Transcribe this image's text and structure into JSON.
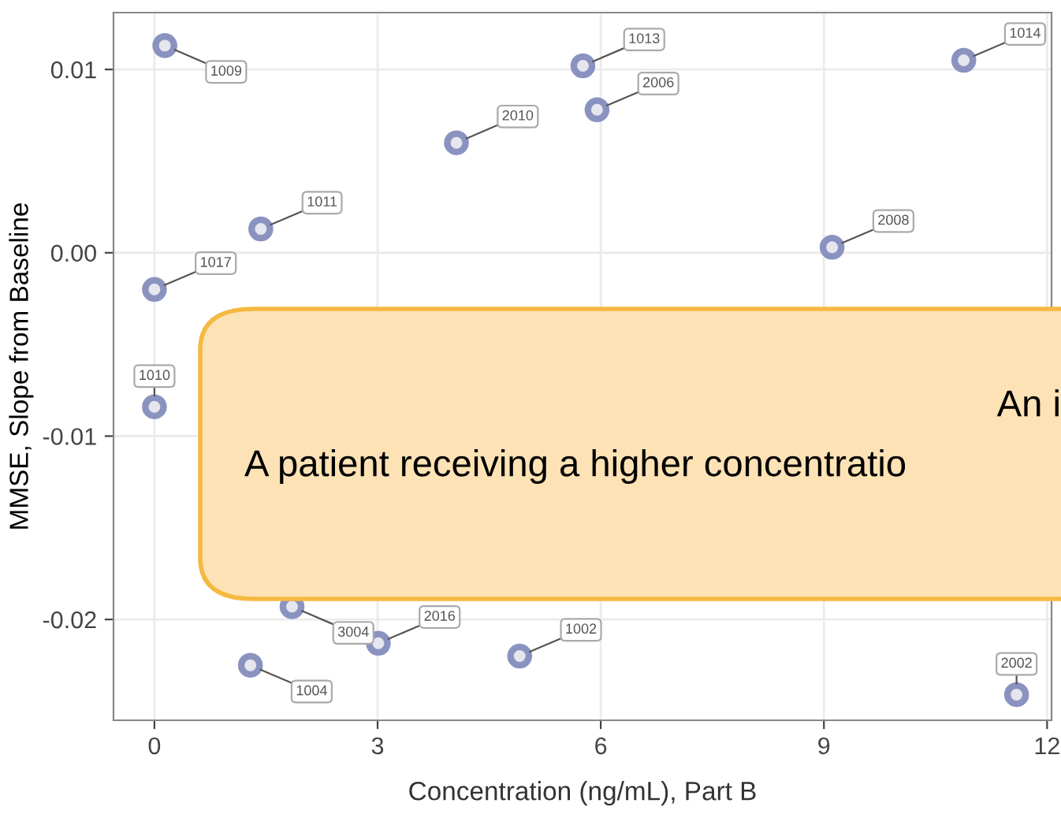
{
  "chart_data": {
    "type": "scatter",
    "xlabel": "Concentration (ng/mL), Part B",
    "ylabel": "MMSE, Slope from Baseline",
    "x": [
      0.14,
      4.06,
      1.43,
      0.0,
      5.76,
      5.95,
      9.11,
      10.88,
      0.0,
      1.85,
      1.29,
      3.01,
      4.91,
      11.59
    ],
    "series": [
      {
        "color": "#8a93c0",
        "values": [
          0.0113,
          0.006,
          0.0013,
          -0.002,
          0.0102,
          0.0078,
          0.0003,
          0.0105,
          -0.0084,
          -0.0193,
          -0.0225,
          -0.0213,
          -0.022,
          -0.0241
        ]
      }
    ],
    "marker": "circle",
    "xlim": [
      -0.55,
      12.06
    ],
    "ylim": [
      -0.0255,
      0.0131
    ],
    "xticks": [
      0,
      3,
      6,
      9,
      12
    ],
    "yticks": [
      {
        "value": -0.02,
        "label": "-0.02"
      },
      {
        "value": -0.01,
        "label": "-0.01"
      },
      {
        "value": 0,
        "label": "0.00"
      },
      {
        "value": 0.01,
        "label": "0.01"
      }
    ],
    "grid": true,
    "annotations": [
      {
        "text": "1009",
        "x": 0.14,
        "y": 0.0113
      },
      {
        "text": "2010",
        "x": 4.06,
        "y": 0.006
      },
      {
        "text": "1011",
        "x": 1.43,
        "y": 0.0013
      },
      {
        "text": "1017",
        "x": 0.0,
        "y": -0.002
      },
      {
        "text": "1013",
        "x": 5.76,
        "y": 0.0102
      },
      {
        "text": "2006",
        "x": 5.95,
        "y": 0.0078
      },
      {
        "text": "2008",
        "x": 9.11,
        "y": 0.0003
      },
      {
        "text": "1014",
        "x": 10.88,
        "y": 0.0105
      },
      {
        "text": "1010",
        "x": 0.0,
        "y": -0.0084
      },
      {
        "text": "3004",
        "x": 1.85,
        "y": -0.0193
      },
      {
        "text": "1004",
        "x": 1.29,
        "y": -0.0225
      },
      {
        "text": "2016",
        "x": 3.01,
        "y": -0.0213
      },
      {
        "text": "1002",
        "x": 4.91,
        "y": -0.022
      },
      {
        "text": "2002",
        "x": 11.59,
        "y": -0.0241
      },
      "An i",
      "A patient receiving a higher concentratio"
    ]
  }
}
